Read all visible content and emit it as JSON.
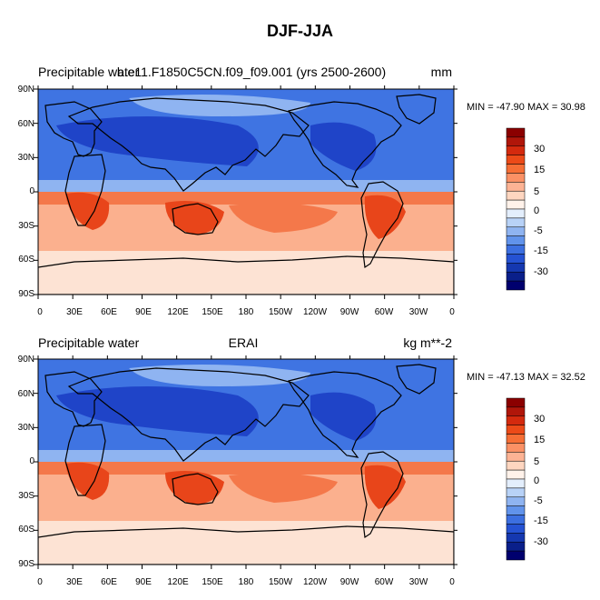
{
  "figure": {
    "title": "DJF-JJA"
  },
  "panels": [
    {
      "left_title": "Precipitable water",
      "center_title": "b.e11.F1850C5CN.f09_f09.001 (yrs 2500-2600)",
      "right_title": "mm",
      "stats": "MIN = -47.90 MAX =  30.98"
    },
    {
      "left_title": "Precipitable water",
      "center_title": "ERAI",
      "right_title": "kg m**-2",
      "stats": "MIN = -47.13 MAX =  32.52"
    }
  ],
  "lat_labels": [
    "90N",
    "60N",
    "30N",
    "0",
    "30S",
    "60S",
    "90S"
  ],
  "lon_labels": [
    "0",
    "30E",
    "60E",
    "90E",
    "120E",
    "150E",
    "180",
    "150W",
    "120W",
    "90W",
    "60W",
    "30W",
    "0"
  ],
  "colorbar": {
    "labels": [
      "30",
      "15",
      "5",
      "0",
      "-5",
      "-15",
      "-30"
    ],
    "colors": [
      "#8b0000",
      "#b0160a",
      "#d42a0e",
      "#ec4a18",
      "#f66e35",
      "#fb9165",
      "#fdb394",
      "#fed6c0",
      "#fff2ea",
      "#e3eefc",
      "#b8d2f7",
      "#8fb4f1",
      "#6193eb",
      "#3c6fe0",
      "#2552d3",
      "#1538b0",
      "#0a1f8a",
      "#00006e"
    ]
  },
  "map_colors": {
    "land": "#000000",
    "neg_strong": "#1f44c8",
    "neg_mid": "#3f74e2",
    "neg_light": "#8fb4f1",
    "pos_strong": "#e8451a",
    "pos_mid": "#f4784a",
    "pos_light": "#fbb08e",
    "pos_pale": "#fde3d4"
  }
}
